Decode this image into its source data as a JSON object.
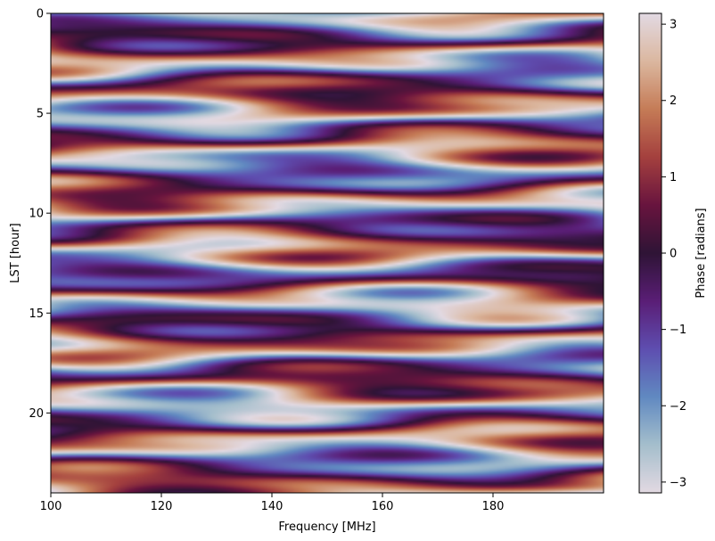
{
  "chart_data": {
    "type": "heatmap",
    "title": "",
    "xlabel": "Frequency [MHz]",
    "ylabel": "LST [hour]",
    "xlim": [
      100,
      200
    ],
    "ylim": [
      24,
      0
    ],
    "xticks": [
      100,
      120,
      140,
      160,
      180
    ],
    "yticks": [
      0,
      5,
      10,
      15,
      20
    ],
    "colorbar": {
      "label": "Phase [radians]",
      "colormap": "twilight_shifted",
      "range": [
        -3.14159,
        3.14159
      ],
      "ticks": [
        3,
        2,
        1,
        0,
        -1,
        -2,
        -3
      ],
      "tick_labels": [
        "3",
        "2",
        "1",
        "0",
        "−1",
        "−2",
        "−3"
      ]
    },
    "grid": false,
    "note_values": "phase wraps in [-pi, pi]; field shows horizontal wavy bands varying slowly with frequency"
  }
}
